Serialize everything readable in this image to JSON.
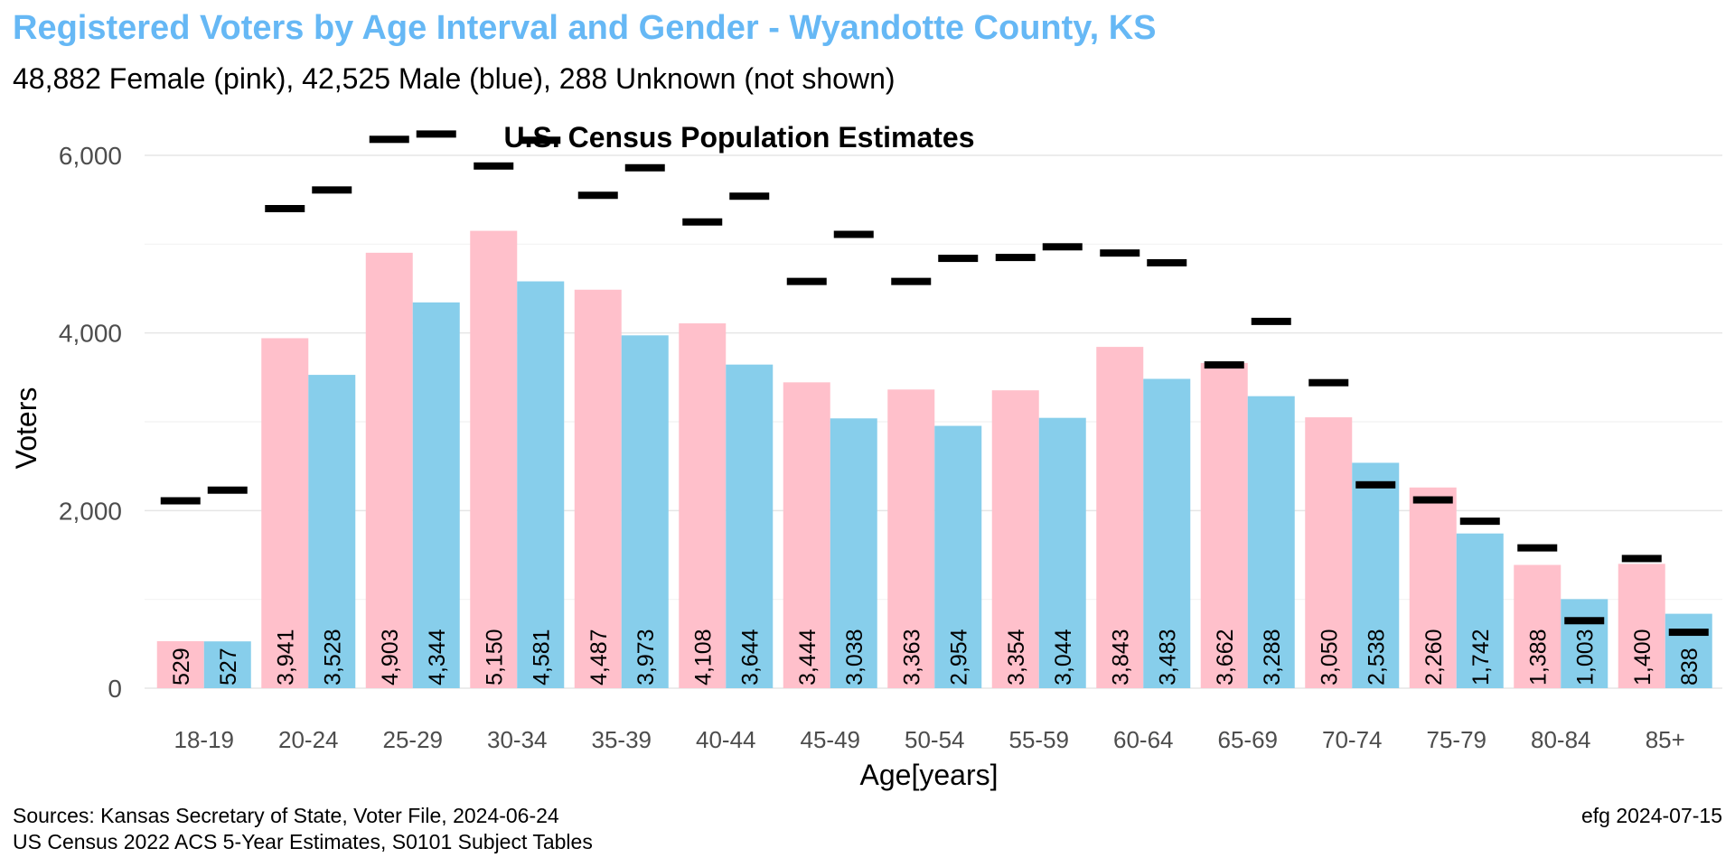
{
  "chart_data": {
    "type": "bar",
    "title": "Registered Voters by Age Interval and Gender - Wyandotte County, KS",
    "subtitle": "48,882 Female (pink),  42,525 Male (blue),  288 Unknown (not shown)",
    "annotation": "U.S. Census Population Estimates",
    "xlabel": "Age[years]",
    "ylabel": "Voters",
    "ylim": [
      0,
      6000
    ],
    "yticks": [
      0,
      2000,
      4000,
      6000
    ],
    "ytick_labels": [
      "0",
      "2,000",
      "4,000",
      "6,000"
    ],
    "grid": true,
    "categories": [
      "18-19",
      "20-24",
      "25-29",
      "30-34",
      "35-39",
      "40-44",
      "45-49",
      "50-54",
      "55-59",
      "60-64",
      "65-69",
      "70-74",
      "75-79",
      "80-84",
      "85+"
    ],
    "series": [
      {
        "color": "#ffc0cb",
        "values": [
          529,
          3941,
          4903,
          5150,
          4487,
          4108,
          3444,
          3363,
          3354,
          3843,
          3662,
          3050,
          2260,
          1388,
          1400
        ],
        "labels": [
          "529",
          "3,941",
          "4,903",
          "5,150",
          "4,487",
          "4,108",
          "3,444",
          "3,363",
          "3,354",
          "3,843",
          "3,662",
          "3,050",
          "2,260",
          "1,388",
          "1,400"
        ]
      },
      {
        "color": "#87ceeb",
        "values": [
          527,
          3528,
          4344,
          4581,
          3973,
          3644,
          3038,
          2954,
          3044,
          3483,
          3288,
          2538,
          1742,
          1003,
          838
        ],
        "labels": [
          "527",
          "3,528",
          "4,344",
          "4,581",
          "3,973",
          "3,644",
          "3,038",
          "2,954",
          "3,044",
          "3,483",
          "3,288",
          "2,538",
          "1,742",
          "1,003",
          "838"
        ]
      }
    ],
    "census_estimates": [
      {
        "values": [
          2110,
          5400,
          6180,
          5880,
          5550,
          5250,
          4580,
          4580,
          4850,
          4900,
          3640,
          3440,
          2120,
          1580,
          1460
        ]
      },
      {
        "values": [
          2230,
          5610,
          6240,
          6170,
          5860,
          5540,
          5110,
          4840,
          4970,
          4790,
          4130,
          2290,
          1880,
          760,
          630
        ]
      }
    ],
    "census_color": "#000000"
  },
  "footer": {
    "source_line1": "Sources: Kansas Secretary of State, Voter File, 2024-06-24",
    "source_line2": "US Census 2022 ACS 5-Year Estimates, S0101 Subject Tables",
    "credit": "efg 2024-07-15"
  }
}
